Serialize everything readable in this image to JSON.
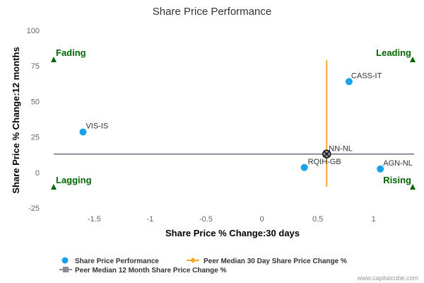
{
  "chart_data": {
    "type": "scatter",
    "title": "Share Price Performance",
    "xlabel": "Share Price % Change:30 days",
    "ylabel": "Share Price % Change:12 months",
    "xlim": [
      -1.9,
      1.4
    ],
    "ylim": [
      -25,
      100
    ],
    "x_ticks": [
      "-1.5",
      "-1",
      "-0.5",
      "0",
      "0.5",
      "1"
    ],
    "x_tick_values": [
      -1.5,
      -1,
      -0.5,
      0,
      0.5,
      1
    ],
    "y_ticks": [
      "100",
      "75",
      "50",
      "25",
      "0",
      "-25"
    ],
    "y_tick_values": [
      100,
      75,
      50,
      25,
      0,
      -25
    ],
    "grid": false,
    "points": [
      {
        "label": "VIS-IS",
        "x": -1.6,
        "y": 28.5
      },
      {
        "label": "CASS-IT",
        "x": 0.78,
        "y": 64
      },
      {
        "label": "NN-NL",
        "x": 0.58,
        "y": 13
      },
      {
        "label": "RQIH-GB",
        "x": 0.38,
        "y": 3.5
      },
      {
        "label": "AGN-NL",
        "x": 1.06,
        "y": 2.5
      }
    ],
    "peer_median_30d": 0.58,
    "peer_median_12m": 13,
    "quadrants": {
      "top_left": "Fading",
      "top_right": "Leading",
      "bottom_left": "Lagging",
      "bottom_right": "Rising"
    },
    "colors": {
      "points": "#1aa3e8",
      "median_30d": "#f5a623",
      "median_12m": "#8c8c99",
      "quadrant": "#006600"
    },
    "legend": [
      {
        "label": "Share Price Performance"
      },
      {
        "label": "Peer Median 30 Day Share Price Change %"
      },
      {
        "label": "Peer Median 12 Month Share Price Change %"
      }
    ],
    "legend_position": "bottom-left"
  },
  "credit": "www.capitalcube.com"
}
